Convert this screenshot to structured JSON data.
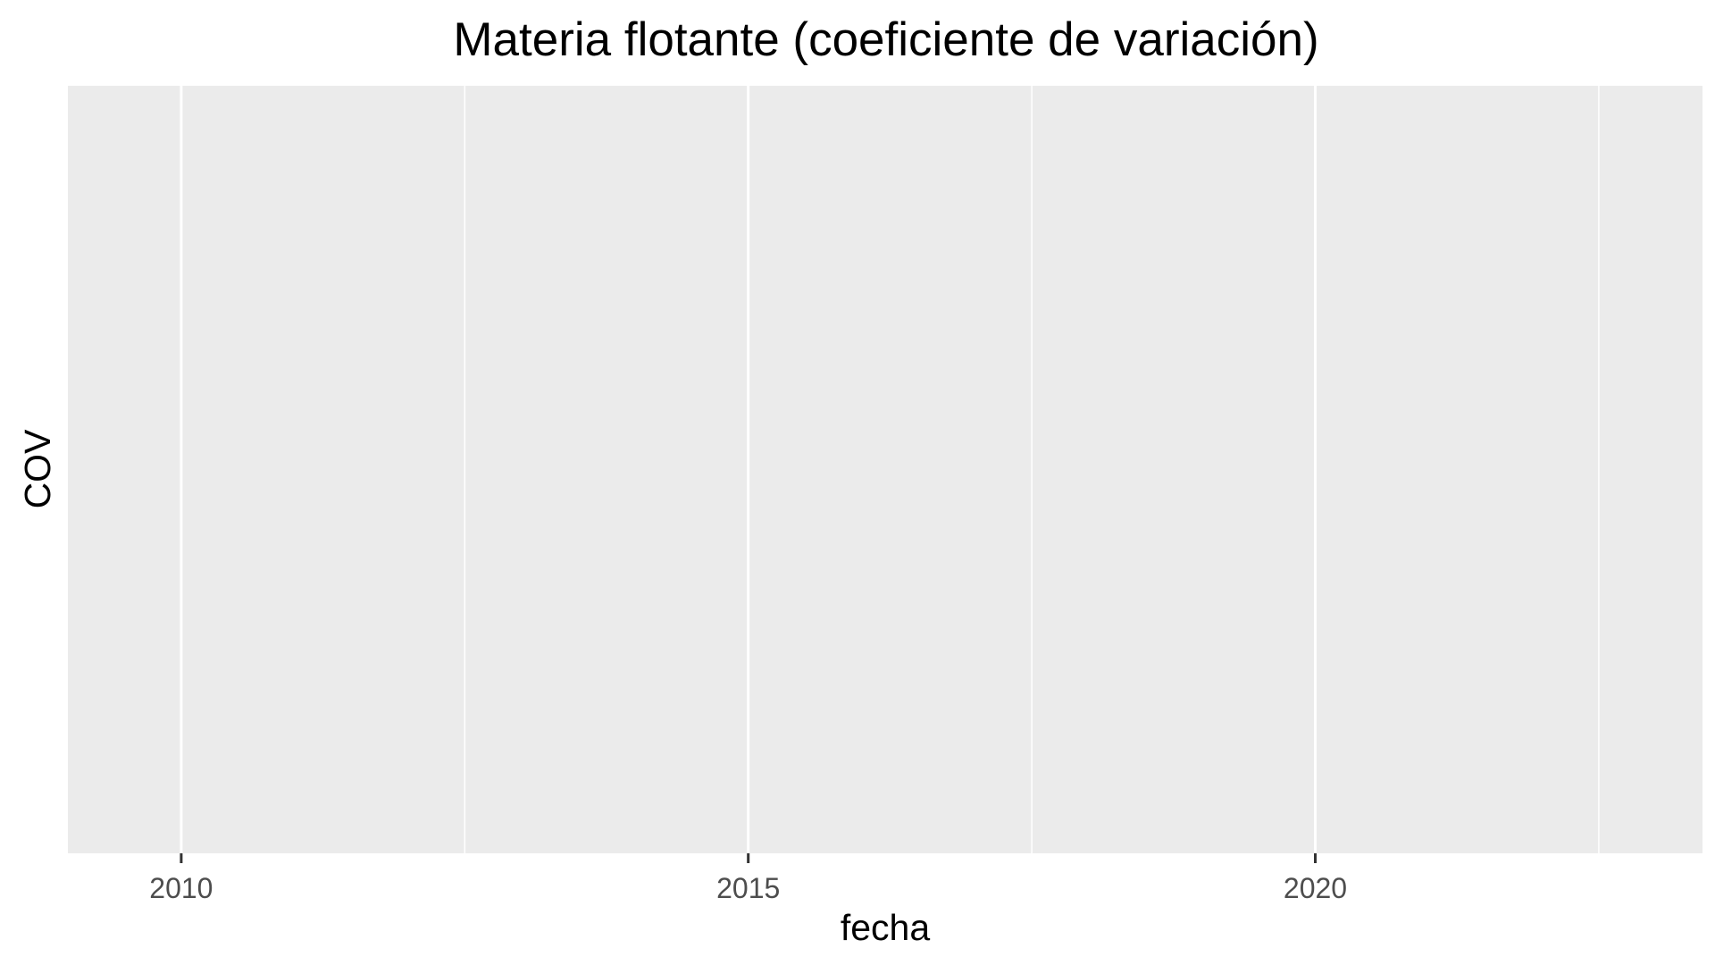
{
  "chart_data": {
    "type": "line",
    "title": "Materia flotante (coeficiente de variación)",
    "xlabel": "fecha",
    "ylabel": "COV",
    "x_axis_kind": "date",
    "xlim": [
      "2009-01-01",
      "2023-06-01"
    ],
    "x_major_ticks": [
      "2010-01-01",
      "2015-01-01",
      "2020-01-01"
    ],
    "x_minor_ticks": [
      "2012-07-02",
      "2017-07-02",
      "2022-07-02"
    ],
    "x_tick_labels": [
      "2010",
      "2015",
      "2020"
    ],
    "y_tick_labels": [],
    "series": [],
    "grid": true,
    "panel_color": "#ebebeb",
    "grid_color": "#ffffff",
    "tick_color": "#333333",
    "tick_label_color": "#4d4d4d"
  }
}
